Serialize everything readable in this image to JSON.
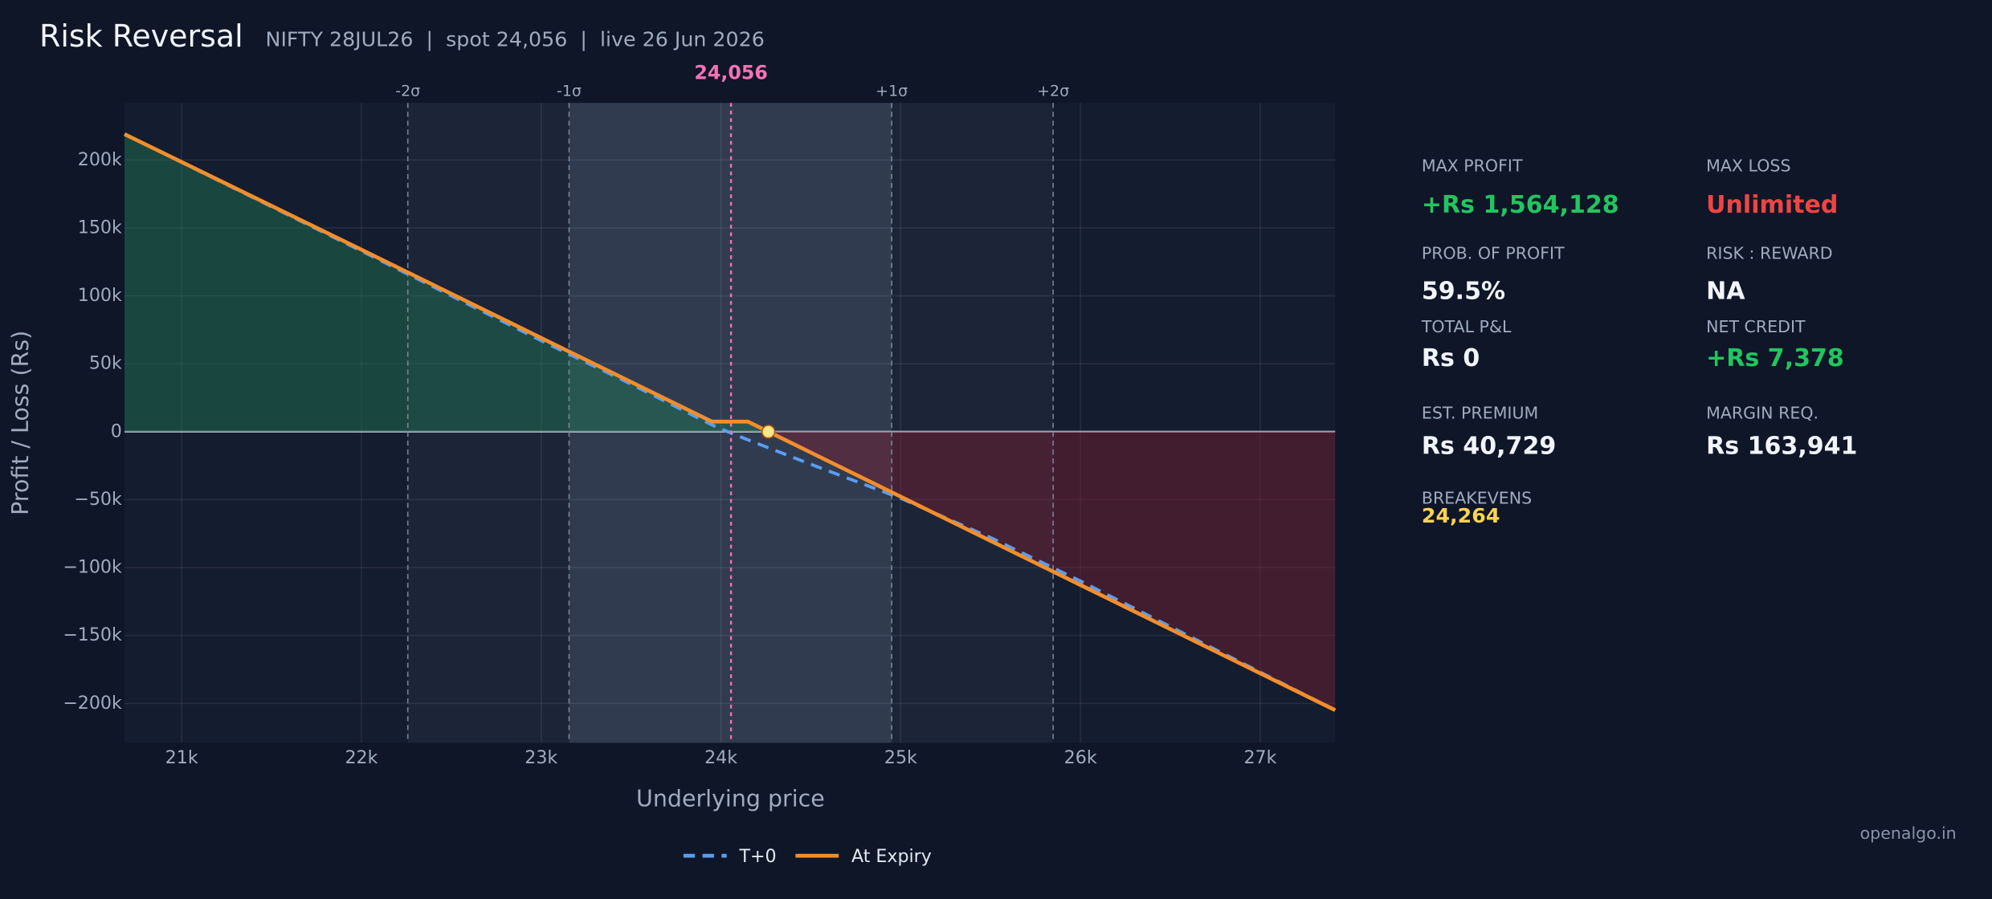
{
  "chart_data": {
    "type": "line",
    "title": "Risk Reversal",
    "subtitle": "NIFTY 28JUL26  |  spot 24,056  |  live 26 Jun 2026",
    "x_label": "Underlying price",
    "y_label": "Profit / Loss (Rs)",
    "xlim": [
      20682,
      27417
    ],
    "ylim": [
      -229000,
      242000
    ],
    "xticks": [
      {
        "value": 21000,
        "label": "21k"
      },
      {
        "value": 22000,
        "label": "22k"
      },
      {
        "value": 23000,
        "label": "23k"
      },
      {
        "value": 24000,
        "label": "24k"
      },
      {
        "value": 25000,
        "label": "25k"
      },
      {
        "value": 26000,
        "label": "26k"
      },
      {
        "value": 27000,
        "label": "27k"
      }
    ],
    "yticks": [
      {
        "value": 200000,
        "label": "200k"
      },
      {
        "value": 150000,
        "label": "150k"
      },
      {
        "value": 100000,
        "label": "100k"
      },
      {
        "value": 50000,
        "label": "50k"
      },
      0,
      {
        "value": -50000,
        "label": "−50k"
      },
      {
        "value": -100000,
        "label": "−100k"
      },
      {
        "value": -150000,
        "label": "−150k"
      },
      {
        "value": -200000,
        "label": "−200k"
      }
    ],
    "grid": true,
    "x": [
      20682,
      22000,
      23000,
      23500,
      23950,
      24000,
      24150,
      24500,
      25000,
      25500,
      26000,
      27417
    ],
    "series": [
      {
        "name": "T+0",
        "color": "#5b9cf0",
        "dashed": true,
        "values": [
          219000,
          133000,
          67000,
          35000,
          5000,
          2000,
          -6000,
          -24000,
          -49000,
          -78000,
          -110000,
          -205000
        ]
      },
      {
        "name": "At Expiry",
        "color": "#f28e2b",
        "dashed": false,
        "values": [
          219000,
          134000,
          69000,
          36600,
          7378,
          7378,
          7378,
          -15372,
          -47872,
          -80372,
          -112872,
          -205000
        ]
      }
    ],
    "sigma_lines": [
      {
        "value": 22258,
        "label": "-2σ"
      },
      {
        "value": 23155,
        "label": "-1σ"
      },
      {
        "value": 24950,
        "label": "+1σ"
      },
      {
        "value": 25848,
        "label": "+2σ"
      }
    ],
    "spot": {
      "value": 24056,
      "label": "24,056"
    },
    "breakeven": 24264,
    "legend": "bottom"
  },
  "stats": [
    {
      "label": "MAX PROFIT",
      "value": "+Rs 1,564,128",
      "color": "#22c55e"
    },
    {
      "label": "MAX LOSS",
      "value": "Unlimited",
      "color": "#ef4444"
    },
    {
      "label": "PROB. OF PROFIT",
      "value": "59.5%",
      "color": "#f1f5f9"
    },
    {
      "label": "RISK : REWARD",
      "value": "NA",
      "color": "#f1f5f9"
    },
    {
      "label": "TOTAL P&L",
      "value": "Rs 0",
      "color": "#f1f5f9"
    },
    {
      "label": "NET CREDIT",
      "value": "+Rs 7,378",
      "color": "#22c55e"
    },
    {
      "label": "EST. PREMIUM",
      "value": "Rs 40,729",
      "color": "#f1f5f9"
    },
    {
      "label": "MARGIN REQ.",
      "value": "Rs 163,941",
      "color": "#f1f5f9"
    },
    {
      "label": "BREAKEVENS",
      "value": "24,264",
      "color": "#fcd34d"
    }
  ],
  "watermark": "openalgo.in"
}
